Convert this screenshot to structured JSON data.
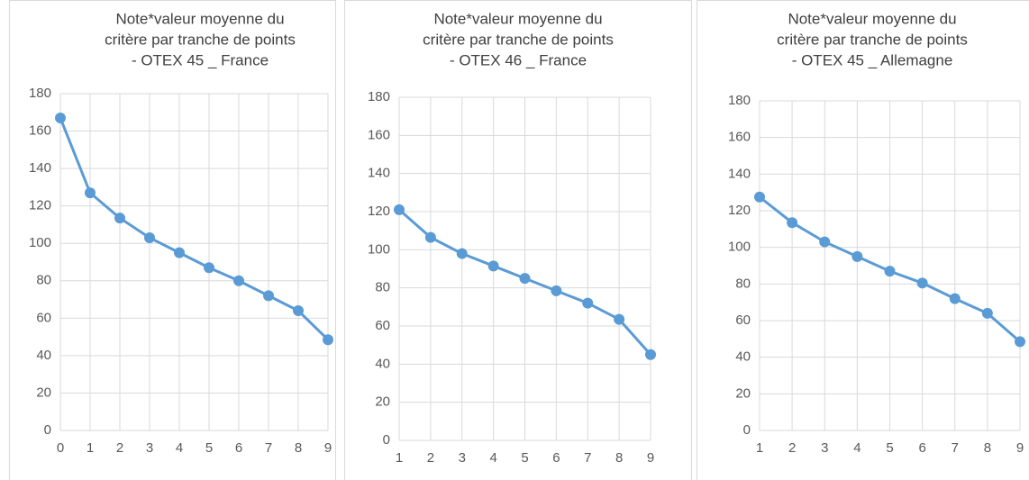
{
  "chart_data": [
    {
      "type": "line",
      "title": [
        "Note*valeur moyenne du",
        "critère par tranche de points",
        "- OTEX 45 _ France"
      ],
      "x": [
        0,
        1,
        2,
        3,
        4,
        5,
        6,
        7,
        8,
        9
      ],
      "xlim": [
        0,
        9
      ],
      "xticks": [
        0,
        1,
        2,
        3,
        4,
        5,
        6,
        7,
        8,
        9
      ],
      "series": [
        {
          "color": "#5b9bd5",
          "values": [
            167,
            127,
            113.5,
            103,
            95,
            87,
            80,
            72,
            64,
            48.5
          ]
        }
      ],
      "ylim": [
        0,
        180
      ],
      "yticks": [
        0,
        20,
        40,
        60,
        80,
        100,
        120,
        140,
        160,
        180
      ],
      "grid": true
    },
    {
      "type": "line",
      "title": [
        "Note*valeur moyenne du",
        "critère par tranche de points",
        "- OTEX 46 _ France"
      ],
      "x": [
        1,
        2,
        3,
        4,
        5,
        6,
        7,
        8,
        9
      ],
      "xlim": [
        1,
        9
      ],
      "xticks": [
        1,
        2,
        3,
        4,
        5,
        6,
        7,
        8,
        9
      ],
      "series": [
        {
          "color": "#5b9bd5",
          "values": [
            121,
            106.5,
            98,
            91.5,
            85,
            78.5,
            72,
            63.5,
            45
          ]
        }
      ],
      "ylim": [
        0,
        180
      ],
      "yticks": [
        0,
        20,
        40,
        60,
        80,
        100,
        120,
        140,
        160,
        180
      ],
      "grid": true
    },
    {
      "type": "line",
      "title": [
        "Note*valeur moyenne du",
        "critère par tranche de points",
        "- OTEX 45 _ Allemagne"
      ],
      "x": [
        1,
        2,
        3,
        4,
        5,
        6,
        7,
        8,
        9
      ],
      "xlim": [
        1,
        9
      ],
      "xticks": [
        1,
        2,
        3,
        4,
        5,
        6,
        7,
        8,
        9
      ],
      "series": [
        {
          "color": "#5b9bd5",
          "values": [
            127.5,
            113.5,
            103,
            95,
            87,
            80.5,
            72,
            64,
            48.5
          ]
        }
      ],
      "ylim": [
        0,
        180
      ],
      "yticks": [
        0,
        20,
        40,
        60,
        80,
        100,
        120,
        140,
        160,
        180
      ],
      "grid": true
    }
  ]
}
